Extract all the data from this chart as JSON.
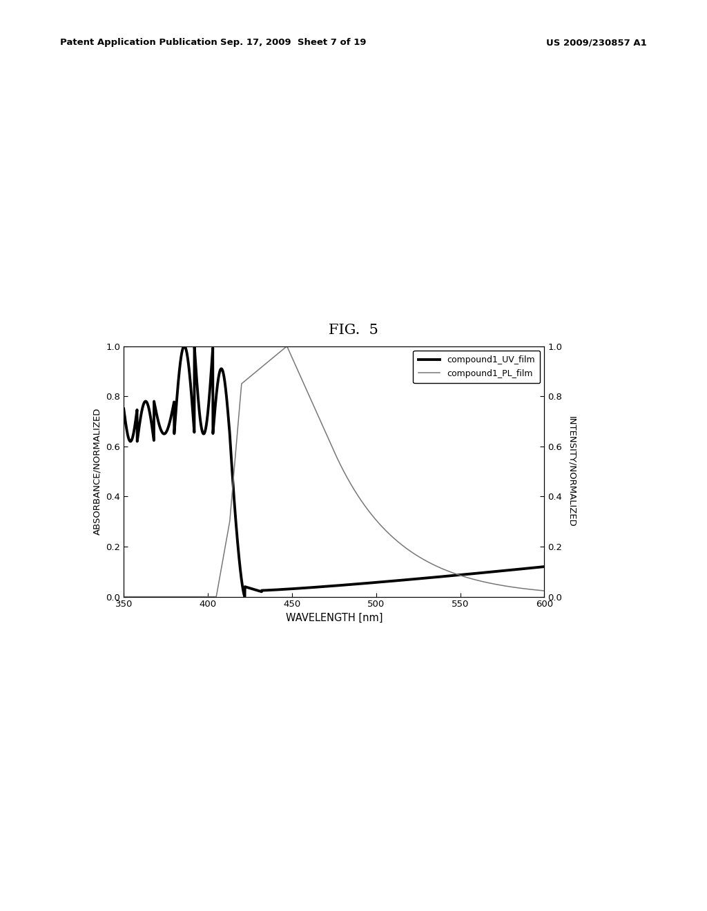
{
  "title": "FIG.  5",
  "header_left": "Patent Application Publication",
  "header_center": "Sep. 17, 2009  Sheet 7 of 19",
  "header_right": "US 2009/230857 A1",
  "xlabel": "WAVELENGTH [nm]",
  "ylabel_left": "ABSORBANCE/NORMALIZED",
  "ylabel_right": "INTENSITY/NORMALIZED",
  "legend_uv": "compound1_UV_film",
  "legend_pl": "compound1_PL_film",
  "xlim": [
    350,
    600
  ],
  "ylim": [
    0.0,
    1.0
  ],
  "xticks": [
    350,
    400,
    450,
    500,
    550,
    600
  ],
  "yticks": [
    0.0,
    0.2,
    0.4,
    0.6,
    0.8,
    1.0
  ],
  "background_color": "#ffffff",
  "uv_color": "#000000",
  "pl_color": "#777777",
  "uv_linewidth": 2.8,
  "pl_linewidth": 1.1
}
